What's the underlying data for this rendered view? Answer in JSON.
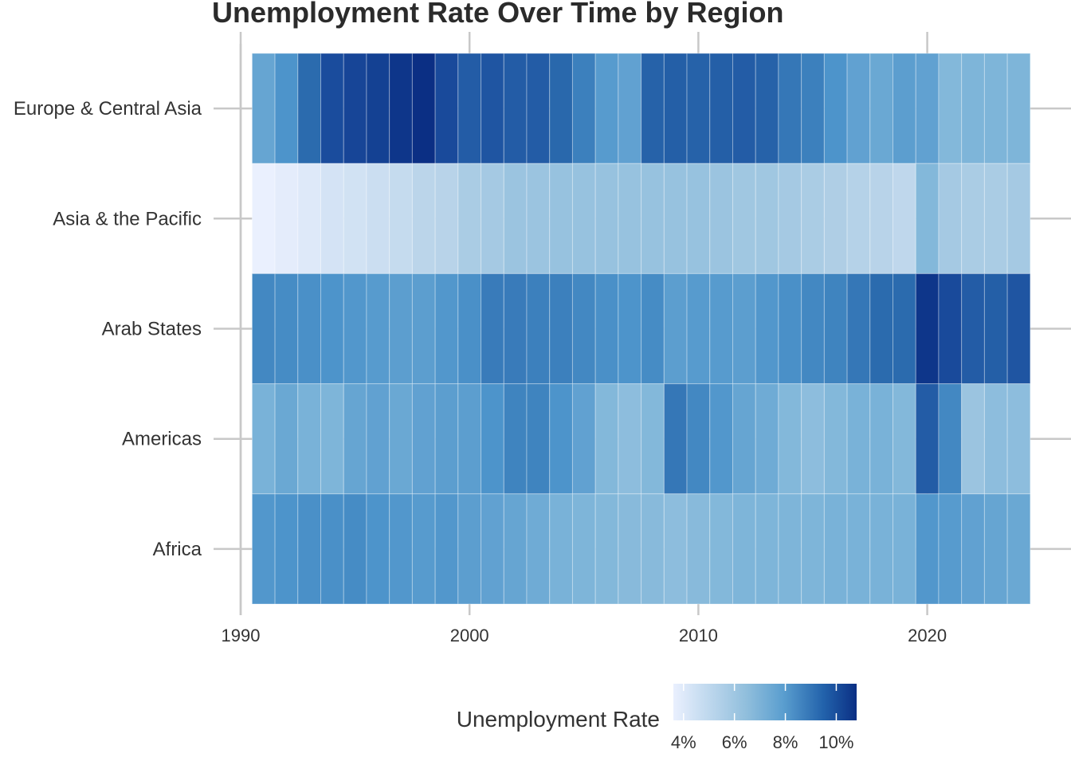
{
  "chart_data": {
    "type": "heatmap",
    "title": "Unemployment Rate Over Time by Region",
    "xlabel": "",
    "ylabel": "",
    "x": [
      1991,
      1992,
      1993,
      1994,
      1995,
      1996,
      1997,
      1998,
      1999,
      2000,
      2001,
      2002,
      2003,
      2004,
      2005,
      2006,
      2007,
      2008,
      2009,
      2010,
      2011,
      2012,
      2013,
      2014,
      2015,
      2016,
      2017,
      2018,
      2019,
      2020,
      2021,
      2022,
      2023,
      2024
    ],
    "x_ticks": [
      "1990",
      "2000",
      "2010",
      "2020"
    ],
    "x_tick_values": [
      1990,
      2000,
      2010,
      2020
    ],
    "xlim": [
      1990,
      2025
    ],
    "regions": [
      "Europe & Central Asia",
      "Asia & the Pacific",
      "Arab States",
      "Americas",
      "Africa"
    ],
    "series": [
      {
        "name": "Europe & Central Asia",
        "values": [
          7.0,
          7.5,
          8.5,
          9.5,
          9.8,
          10.0,
          10.5,
          10.8,
          9.6,
          9.0,
          9.2,
          9.0,
          9.0,
          8.6,
          8.0,
          7.3,
          7.1,
          8.8,
          8.9,
          8.8,
          8.9,
          9.0,
          8.8,
          8.2,
          8.0,
          7.5,
          7.1,
          6.9,
          7.2,
          7.1,
          6.4,
          6.5,
          6.5,
          6.5
        ]
      },
      {
        "name": "Asia & the Pacific",
        "values": [
          3.6,
          3.8,
          4.0,
          4.3,
          4.4,
          4.6,
          4.8,
          5.1,
          5.2,
          5.6,
          5.7,
          5.9,
          5.9,
          6.0,
          6.0,
          6.0,
          6.0,
          6.0,
          6.0,
          6.0,
          5.9,
          5.8,
          5.8,
          5.7,
          5.6,
          5.5,
          5.3,
          5.2,
          5.0,
          6.4,
          5.7,
          5.6,
          5.6,
          5.7
        ]
      },
      {
        "name": "Arab States",
        "values": [
          7.8,
          7.7,
          7.6,
          7.5,
          7.4,
          7.3,
          7.2,
          7.2,
          7.4,
          7.6,
          8.1,
          8.1,
          8.0,
          8.0,
          7.8,
          7.6,
          7.5,
          7.7,
          7.2,
          7.3,
          7.3,
          7.2,
          7.4,
          7.6,
          7.8,
          7.9,
          8.2,
          8.5,
          8.5,
          10.5,
          9.6,
          9.0,
          8.9,
          9.2
        ]
      },
      {
        "name": "Americas",
        "values": [
          6.6,
          6.9,
          6.6,
          6.5,
          7.0,
          7.1,
          6.9,
          7.1,
          7.2,
          7.2,
          7.5,
          7.9,
          7.9,
          7.5,
          7.1,
          6.4,
          6.2,
          6.4,
          8.2,
          7.8,
          7.4,
          7.0,
          6.8,
          6.4,
          6.2,
          6.4,
          6.6,
          6.6,
          6.4,
          9.0,
          7.8,
          5.9,
          6.2,
          6.2
        ]
      },
      {
        "name": "Africa",
        "values": [
          7.4,
          7.5,
          7.6,
          7.6,
          7.7,
          7.5,
          7.4,
          7.3,
          7.4,
          7.2,
          7.1,
          7.0,
          6.8,
          6.6,
          6.5,
          6.4,
          6.3,
          6.3,
          6.2,
          6.3,
          6.4,
          6.5,
          6.5,
          6.5,
          6.5,
          6.6,
          6.6,
          6.6,
          6.6,
          7.4,
          7.3,
          7.1,
          7.0,
          6.9
        ]
      }
    ],
    "legend": {
      "title": "Unemployment Rate",
      "ticks": [
        "4%",
        "6%",
        "8%",
        "10%"
      ],
      "tick_values": [
        4,
        6,
        8,
        10
      ],
      "range": [
        3.6,
        10.8
      ],
      "placement": "bottom"
    },
    "colors": {
      "low": "#eaf0fe",
      "mid": "#5a9ecf",
      "high": "#0b2f84",
      "axis": "#c8c8c8"
    },
    "grid": true
  }
}
